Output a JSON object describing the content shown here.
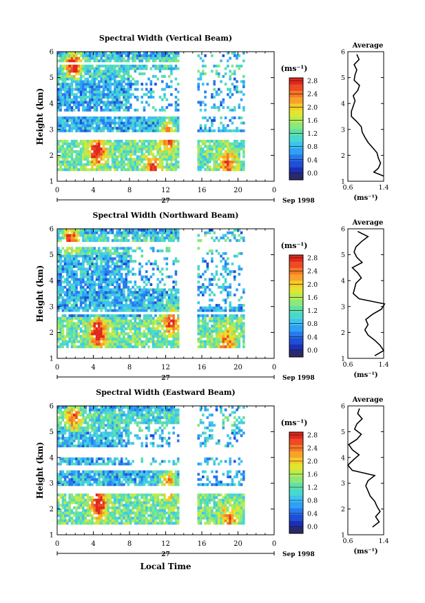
{
  "figure": {
    "xlabel": "Local Time",
    "date_label": "27",
    "month_label": "Sep 1998",
    "colorbar_unit": "(ms⁻¹)",
    "profile_xlabel": "(ms⁻¹)"
  },
  "colorbar": {
    "ticks": [
      "0.0",
      "0.4",
      "0.8",
      "1.2",
      "1.6",
      "2.0",
      "2.4",
      "2.8"
    ],
    "colors": [
      "#2a2a6a",
      "#1f2fb0",
      "#1f4fd8",
      "#2a78ee",
      "#2fa0f5",
      "#3fc2f0",
      "#48d8d0",
      "#60e0a8",
      "#8ae87c",
      "#b8ec52",
      "#e0e630",
      "#f6cc2a",
      "#f8a22a",
      "#f67a28",
      "#ee4a26",
      "#e0281e"
    ]
  },
  "chart_data": [
    {
      "type": "heatmap",
      "title": "Spectral Width (Vertical Beam)",
      "xlabel": "Local Time",
      "ylabel": "Height (km)",
      "xlim": [
        0,
        24
      ],
      "ylim": [
        1,
        6
      ],
      "x_ticks": [
        "0",
        "4",
        "8",
        "12",
        "16",
        "20",
        "0"
      ],
      "y_ticks": [
        "1",
        "2",
        "3",
        "4",
        "5",
        "6"
      ],
      "colorbar_range": [
        0.0,
        3.0
      ],
      "data_gaps_hours": [
        [
          8.9,
          9.1
        ],
        [
          13.6,
          15.4
        ],
        [
          20.8,
          24
        ]
      ],
      "height_gaps_km": [
        [
          2.6,
          2.9
        ],
        [
          3.5,
          3.7
        ],
        [
          5.5,
          5.6
        ]
      ],
      "hotspots": [
        {
          "time": 1.8,
          "height": 5.5,
          "width_ms": 2.9
        },
        {
          "time": 4.4,
          "height": 2.2,
          "width_ms": 3.0
        },
        {
          "time": 12.3,
          "height": 2.8,
          "width_ms": 2.8
        },
        {
          "time": 10.6,
          "height": 1.5,
          "width_ms": 2.5
        },
        {
          "time": 18.8,
          "height": 1.7,
          "width_ms": 2.4
        }
      ],
      "profile": {
        "title": "Average",
        "xlim": [
          0.6,
          1.4
        ],
        "x_ticks": [
          "0.6",
          "1.4"
        ],
        "y_ticks": [
          "1",
          "2",
          "3",
          "4",
          "5",
          "6"
        ],
        "heights": [
          1.2,
          1.35,
          1.5,
          1.7,
          1.9,
          2.1,
          2.3,
          2.5,
          2.7,
          2.9,
          3.1,
          3.3,
          3.5,
          3.7,
          3.9,
          4.1,
          4.3,
          4.5,
          4.7,
          4.9,
          5.1,
          5.3,
          5.5,
          5.7,
          5.9
        ],
        "values": [
          1.4,
          1.18,
          1.28,
          1.33,
          1.28,
          1.25,
          1.15,
          1.05,
          0.98,
          0.92,
          0.9,
          0.8,
          0.68,
          0.68,
          0.72,
          0.76,
          0.72,
          0.82,
          0.86,
          0.74,
          0.76,
          0.8,
          0.74,
          0.85,
          0.8
        ]
      }
    },
    {
      "type": "heatmap",
      "title": "Spectral Width (Northward Beam)",
      "xlabel": "Local Time",
      "ylabel": "Height (km)",
      "xlim": [
        0,
        24
      ],
      "ylim": [
        1,
        6
      ],
      "x_ticks": [
        "0",
        "4",
        "8",
        "12",
        "16",
        "20",
        "0"
      ],
      "y_ticks": [
        "1",
        "2",
        "3",
        "4",
        "5",
        "6"
      ],
      "colorbar_range": [
        0.0,
        3.0
      ],
      "data_gaps_hours": [
        [
          8.9,
          9.1
        ],
        [
          13.6,
          15.4
        ],
        [
          20.8,
          24
        ]
      ],
      "height_gaps_km": [
        [
          5.3,
          5.5
        ],
        [
          2.7,
          2.8
        ]
      ],
      "hotspots": [
        {
          "time": 1.6,
          "height": 5.7,
          "width_ms": 2.8
        },
        {
          "time": 4.5,
          "height": 2.0,
          "width_ms": 3.0
        },
        {
          "time": 12.6,
          "height": 2.5,
          "width_ms": 2.6
        },
        {
          "time": 18.8,
          "height": 1.6,
          "width_ms": 2.3
        }
      ],
      "profile": {
        "title": "Average",
        "xlim": [
          0.6,
          1.4
        ],
        "x_ticks": [
          "0.6",
          "1.4"
        ],
        "y_ticks": [
          "1",
          "2",
          "3",
          "4",
          "5",
          "6"
        ],
        "heights": [
          1.1,
          1.3,
          1.5,
          1.7,
          1.9,
          2.1,
          2.3,
          2.5,
          2.7,
          2.9,
          3.1,
          3.3,
          3.5,
          3.7,
          3.9,
          4.1,
          4.3,
          4.5,
          4.7,
          4.9,
          5.1,
          5.3,
          5.5,
          5.7,
          5.9
        ],
        "values": [
          1.2,
          1.4,
          1.32,
          1.2,
          1.05,
          0.98,
          1.05,
          1.0,
          1.15,
          1.35,
          1.42,
          0.85,
          0.72,
          0.75,
          0.78,
          0.9,
          0.82,
          0.7,
          0.92,
          0.8,
          0.74,
          0.78,
          0.9,
          1.05,
          0.82
        ]
      }
    },
    {
      "type": "heatmap",
      "title": "Spectral Width (Eastward Beam)",
      "xlabel": "Local Time",
      "ylabel": "Height (km)",
      "xlim": [
        0,
        24
      ],
      "ylim": [
        1,
        6
      ],
      "x_ticks": [
        "0",
        "4",
        "8",
        "12",
        "16",
        "20",
        "0"
      ],
      "y_ticks": [
        "1",
        "2",
        "3",
        "4",
        "5",
        "6"
      ],
      "colorbar_range": [
        0.0,
        3.0
      ],
      "data_gaps_hours": [
        [
          8.9,
          9.1
        ],
        [
          13.6,
          15.4
        ],
        [
          20.8,
          24
        ]
      ],
      "height_gaps_km": [
        [
          2.6,
          2.9
        ],
        [
          3.5,
          3.7
        ],
        [
          4.0,
          4.4
        ]
      ],
      "hotspots": [
        {
          "time": 1.8,
          "height": 5.6,
          "width_ms": 2.6
        },
        {
          "time": 4.6,
          "height": 2.2,
          "width_ms": 3.0
        },
        {
          "time": 12.2,
          "height": 3.0,
          "width_ms": 2.7
        },
        {
          "time": 19.0,
          "height": 1.6,
          "width_ms": 2.2
        }
      ],
      "profile": {
        "title": "Average",
        "xlim": [
          0.6,
          1.4
        ],
        "x_ticks": [
          "0.6",
          "1.4"
        ],
        "y_ticks": [
          "1",
          "2",
          "3",
          "4",
          "5",
          "6"
        ],
        "heights": [
          1.3,
          1.5,
          1.7,
          1.9,
          2.1,
          2.3,
          2.5,
          2.7,
          2.9,
          3.1,
          3.3,
          3.5,
          3.7,
          3.9,
          4.1,
          4.3,
          4.5,
          4.7,
          4.9,
          5.1,
          5.3,
          5.5,
          5.7,
          5.9
        ],
        "values": [
          1.15,
          1.3,
          1.22,
          1.32,
          1.25,
          1.2,
          1.1,
          1.05,
          1.0,
          1.05,
          1.2,
          0.7,
          0.6,
          0.72,
          0.85,
          0.7,
          0.62,
          0.8,
          0.9,
          0.75,
          0.8,
          0.92,
          0.82,
          0.86
        ]
      }
    }
  ]
}
